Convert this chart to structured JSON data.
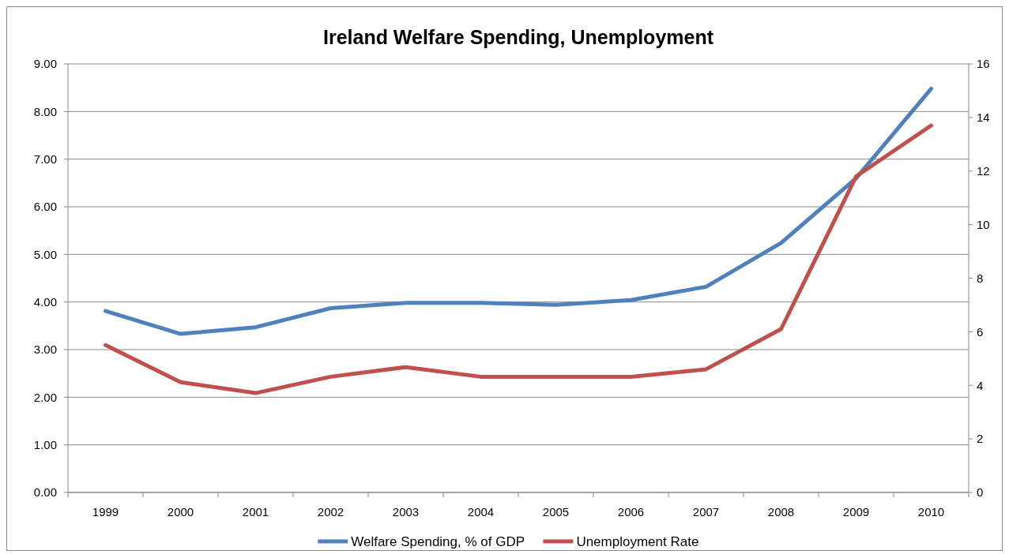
{
  "chart_data": {
    "type": "line",
    "title": "Ireland Welfare Spending, Unemployment",
    "categories": [
      "1999",
      "2000",
      "2001",
      "2002",
      "2003",
      "2004",
      "2005",
      "2006",
      "2007",
      "2008",
      "2009",
      "2010"
    ],
    "series": [
      {
        "name": "Welfare Spending, % of GDP",
        "color": "#4f81bd",
        "values": [
          3.81,
          3.33,
          3.47,
          3.87,
          3.98,
          3.98,
          3.94,
          4.04,
          4.32,
          5.24,
          6.6,
          8.48
        ]
      },
      {
        "name": "Unemployment Rate",
        "color": "#c0504d",
        "axis": "y2",
        "values": [
          5.5,
          4.12,
          3.71,
          4.32,
          4.68,
          4.32,
          4.32,
          4.32,
          4.6,
          6.1,
          11.8,
          13.7
        ]
      }
    ],
    "ylim": [
      0,
      9
    ],
    "yticks": [
      {
        "value": 0,
        "label": "0.00"
      },
      {
        "value": 1,
        "label": "1.00"
      },
      {
        "value": 2,
        "label": "2.00"
      },
      {
        "value": 3,
        "label": "3.00"
      },
      {
        "value": 4,
        "label": "4.00"
      },
      {
        "value": 5,
        "label": "5.00"
      },
      {
        "value": 6,
        "label": "6.00"
      },
      {
        "value": 7,
        "label": "7.00"
      },
      {
        "value": 8,
        "label": "8.00"
      },
      {
        "value": 9,
        "label": "9.00"
      }
    ],
    "y2lim": [
      0,
      16
    ],
    "y2ticks": [
      0,
      2,
      4,
      6,
      8,
      10,
      12,
      14,
      16
    ],
    "grid": "y",
    "legend": "bottom",
    "marker": "none",
    "line_style": "solid"
  }
}
